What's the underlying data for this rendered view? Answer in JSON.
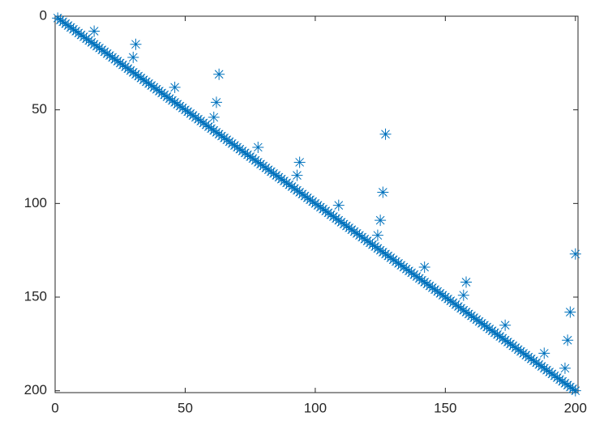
{
  "chart_data": {
    "type": "scatter",
    "color": "#0072bd",
    "marker": "star",
    "xlim": [
      0,
      201
    ],
    "ylim": [
      0,
      201
    ],
    "y_reversed": true,
    "xticks": [
      0,
      50,
      100,
      150,
      200
    ],
    "yticks": [
      0,
      50,
      100,
      150,
      200
    ],
    "x": [
      1,
      2,
      3,
      4,
      5,
      6,
      7,
      8,
      9,
      10,
      11,
      12,
      13,
      14,
      15,
      16,
      17,
      18,
      19,
      20,
      21,
      22,
      23,
      24,
      25,
      26,
      27,
      28,
      29,
      30,
      31,
      32,
      33,
      34,
      35,
      36,
      37,
      38,
      39,
      40,
      41,
      42,
      43,
      44,
      45,
      46,
      47,
      48,
      49,
      50,
      51,
      52,
      53,
      54,
      55,
      56,
      57,
      58,
      59,
      60,
      61,
      62,
      63,
      64,
      65,
      66,
      67,
      68,
      69,
      70,
      71,
      72,
      73,
      74,
      75,
      76,
      77,
      78,
      79,
      80,
      81,
      82,
      83,
      84,
      85,
      86,
      87,
      88,
      89,
      90,
      91,
      92,
      93,
      94,
      95,
      96,
      97,
      98,
      99,
      100,
      101,
      102,
      103,
      104,
      105,
      106,
      107,
      108,
      109,
      110,
      111,
      112,
      113,
      114,
      115,
      116,
      117,
      118,
      119,
      120,
      121,
      122,
      123,
      124,
      125,
      126,
      127,
      128,
      129,
      130,
      131,
      132,
      133,
      134,
      135,
      136,
      137,
      138,
      139,
      140,
      141,
      142,
      143,
      144,
      145,
      146,
      147,
      148,
      149,
      150,
      151,
      152,
      153,
      154,
      155,
      156,
      157,
      158,
      159,
      160,
      161,
      162,
      163,
      164,
      165,
      166,
      167,
      168,
      169,
      170,
      171,
      172,
      173,
      174,
      175,
      176,
      177,
      178,
      179,
      180,
      181,
      182,
      183,
      184,
      185,
      186,
      187,
      188,
      189,
      190,
      191,
      192,
      193,
      194,
      195,
      196,
      197,
      198,
      199,
      200,
      15,
      31,
      30,
      63,
      62,
      46,
      61,
      78,
      94,
      93,
      127,
      126,
      125,
      109,
      124,
      158,
      142,
      157,
      173,
      188,
      197,
      198,
      200,
      196
    ],
    "y": [
      1,
      2,
      3,
      4,
      5,
      6,
      7,
      8,
      9,
      10,
      11,
      12,
      13,
      14,
      15,
      16,
      17,
      18,
      19,
      20,
      21,
      22,
      23,
      24,
      25,
      26,
      27,
      28,
      29,
      30,
      31,
      32,
      33,
      34,
      35,
      36,
      37,
      38,
      39,
      40,
      41,
      42,
      43,
      44,
      45,
      46,
      47,
      48,
      49,
      50,
      51,
      52,
      53,
      54,
      55,
      56,
      57,
      58,
      59,
      60,
      61,
      62,
      63,
      64,
      65,
      66,
      67,
      68,
      69,
      70,
      71,
      72,
      73,
      74,
      75,
      76,
      77,
      78,
      79,
      80,
      81,
      82,
      83,
      84,
      85,
      86,
      87,
      88,
      89,
      90,
      91,
      92,
      93,
      94,
      95,
      96,
      97,
      98,
      99,
      100,
      101,
      102,
      103,
      104,
      105,
      106,
      107,
      108,
      109,
      110,
      111,
      112,
      113,
      114,
      115,
      116,
      117,
      118,
      119,
      120,
      121,
      122,
      123,
      124,
      125,
      126,
      127,
      128,
      129,
      130,
      131,
      132,
      133,
      134,
      135,
      136,
      137,
      138,
      139,
      140,
      141,
      142,
      143,
      144,
      145,
      146,
      147,
      148,
      149,
      150,
      151,
      152,
      153,
      154,
      155,
      156,
      157,
      158,
      159,
      160,
      161,
      162,
      163,
      164,
      165,
      166,
      167,
      168,
      169,
      170,
      171,
      172,
      173,
      174,
      175,
      176,
      177,
      178,
      179,
      180,
      181,
      182,
      183,
      184,
      185,
      186,
      187,
      188,
      189,
      190,
      191,
      192,
      193,
      194,
      195,
      196,
      197,
      198,
      199,
      200,
      8,
      15,
      22,
      31,
      46,
      38,
      54,
      70,
      78,
      85,
      63,
      94,
      109,
      101,
      117,
      142,
      134,
      149,
      165,
      180,
      173,
      158,
      127,
      188
    ]
  }
}
